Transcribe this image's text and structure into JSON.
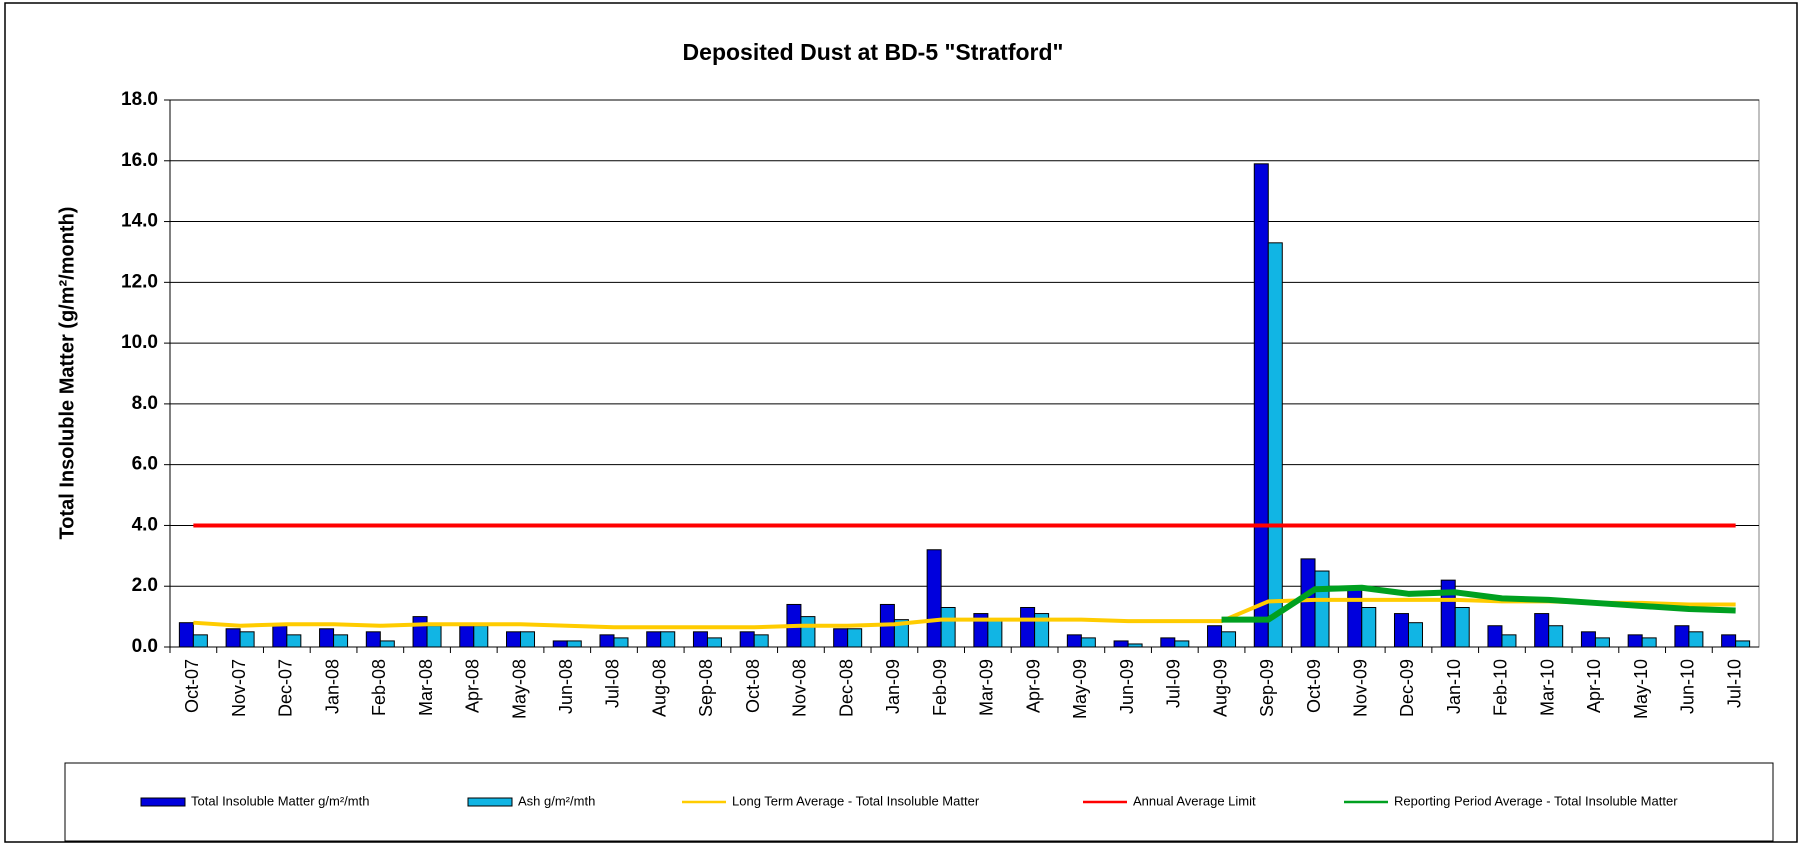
{
  "chart_data": {
    "type": "bar-line",
    "title": "Deposited Dust at BD-5 \"Stratford\"",
    "y_label": "Total Insoluble Matter (g/m²/month)",
    "categories": [
      "Oct-07",
      "Nov-07",
      "Dec-07",
      "Jan-08",
      "Feb-08",
      "Mar-08",
      "Apr-08",
      "May-08",
      "Jun-08",
      "Jul-08",
      "Aug-08",
      "Sep-08",
      "Oct-08",
      "Nov-08",
      "Dec-08",
      "Jan-09",
      "Feb-09",
      "Mar-09",
      "Apr-09",
      "May-09",
      "Jun-09",
      "Jul-09",
      "Aug-09",
      "Sep-09",
      "Oct-09",
      "Nov-09",
      "Dec-09",
      "Jan-10",
      "Feb-10",
      "Mar-10",
      "Apr-10",
      "May-10",
      "Jun-10",
      "Jul-10"
    ],
    "series": [
      {
        "name": "Total Insoluble Matter  g/m²/mth",
        "kind": "bar",
        "color": "#0000dd",
        "values": [
          0.8,
          0.6,
          0.7,
          0.6,
          0.5,
          1.0,
          0.7,
          0.5,
          0.2,
          0.4,
          0.5,
          0.5,
          0.5,
          1.4,
          0.6,
          1.4,
          3.2,
          1.1,
          1.3,
          0.4,
          0.2,
          0.3,
          0.7,
          15.9,
          2.9,
          1.9,
          1.1,
          2.2,
          0.7,
          1.1,
          0.5,
          0.4,
          0.7,
          0.4
        ]
      },
      {
        "name": "Ash  g/m²/mth",
        "kind": "bar",
        "color": "#11b5e4",
        "values": [
          0.4,
          0.5,
          0.4,
          0.4,
          0.2,
          0.7,
          0.7,
          0.5,
          0.2,
          0.3,
          0.5,
          0.3,
          0.4,
          1.0,
          0.6,
          0.9,
          1.3,
          0.9,
          1.1,
          0.3,
          0.1,
          0.2,
          0.5,
          13.3,
          2.5,
          1.3,
          0.8,
          1.3,
          0.4,
          0.7,
          0.3,
          0.3,
          0.5,
          0.2
        ]
      },
      {
        "name": "Long Term Average - Total Insoluble Matter",
        "kind": "line",
        "color": "#ffcc00",
        "width": 4,
        "values": [
          0.8,
          0.7,
          0.75,
          0.75,
          0.7,
          0.75,
          0.75,
          0.75,
          0.7,
          0.65,
          0.65,
          0.65,
          0.65,
          0.7,
          0.7,
          0.75,
          0.9,
          0.9,
          0.9,
          0.9,
          0.85,
          0.85,
          0.85,
          1.5,
          1.55,
          1.55,
          1.55,
          1.55,
          1.5,
          1.5,
          1.45,
          1.45,
          1.4,
          1.4
        ]
      },
      {
        "name": "Annual Average Limit",
        "kind": "line",
        "color": "#ff0000",
        "width": 4,
        "values": [
          4,
          4,
          4,
          4,
          4,
          4,
          4,
          4,
          4,
          4,
          4,
          4,
          4,
          4,
          4,
          4,
          4,
          4,
          4,
          4,
          4,
          4,
          4,
          4,
          4,
          4,
          4,
          4,
          4,
          4,
          4,
          4,
          4,
          4
        ]
      },
      {
        "name": "Reporting Period Average - Total Insoluble Matter",
        "kind": "line",
        "color": "#00a020",
        "width": 6,
        "values": [
          null,
          null,
          null,
          null,
          null,
          null,
          null,
          null,
          null,
          null,
          null,
          null,
          null,
          null,
          null,
          null,
          null,
          null,
          null,
          null,
          null,
          null,
          0.9,
          0.9,
          1.9,
          1.95,
          1.75,
          1.8,
          1.6,
          1.55,
          1.45,
          1.35,
          1.25,
          1.2
        ]
      }
    ],
    "ylim": [
      0,
      18
    ],
    "yticks": [
      {
        "value": 0,
        "label": "0.0"
      },
      {
        "value": 2,
        "label": "2.0"
      },
      {
        "value": 4,
        "label": "4.0"
      },
      {
        "value": 6,
        "label": "6.0"
      },
      {
        "value": 8,
        "label": "8.0"
      },
      {
        "value": 10,
        "label": "10.0"
      },
      {
        "value": 12,
        "label": "12.0"
      },
      {
        "value": 14,
        "label": "14.0"
      },
      {
        "value": 16,
        "label": "16.0"
      },
      {
        "value": 18,
        "label": "18.0"
      }
    ],
    "grid": true,
    "legend": "bottom"
  }
}
